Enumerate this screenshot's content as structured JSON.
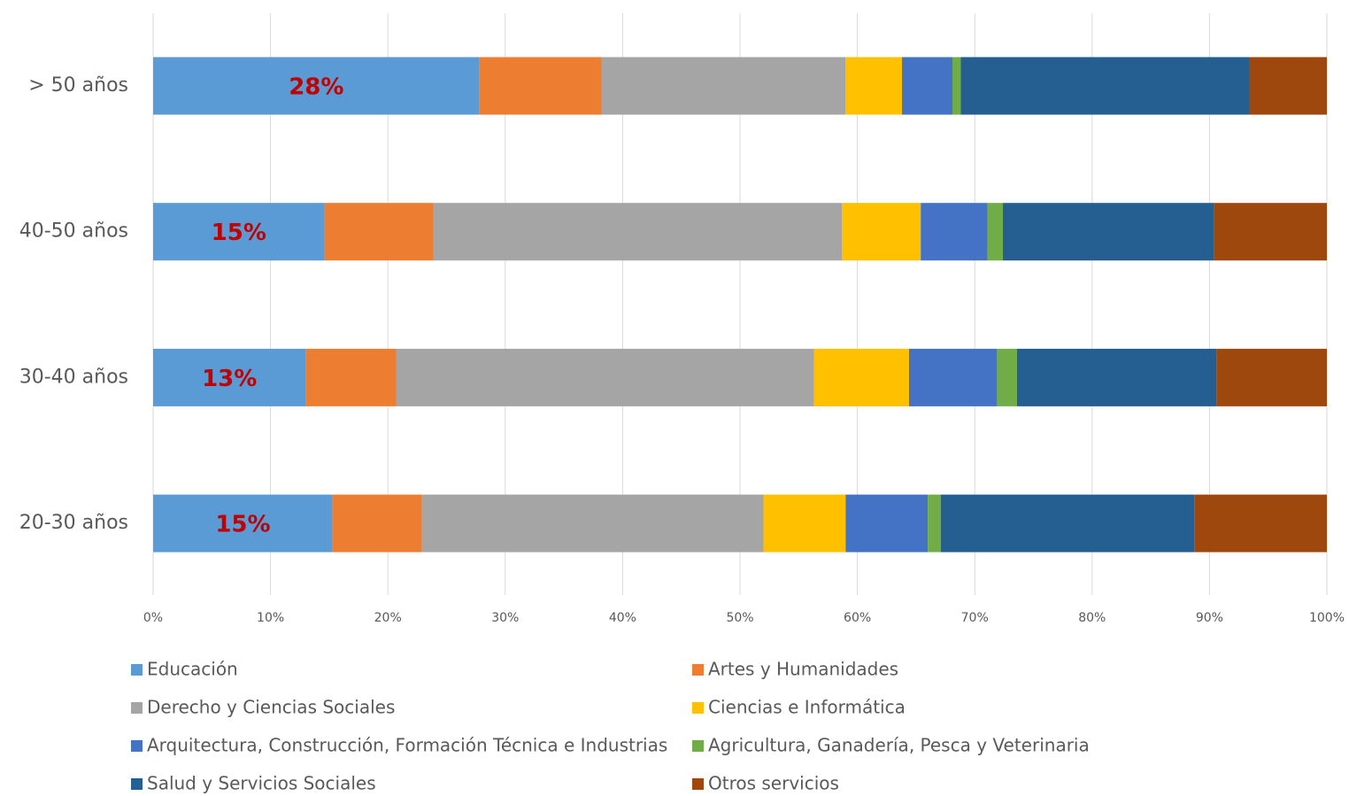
{
  "chart_data": {
    "type": "stacked-bar-horizontal",
    "categories": [
      "> 50 años",
      "40-50 años",
      "30-40 años",
      "20-30 años"
    ],
    "xlim": [
      0,
      100
    ],
    "xticks": [
      {
        "value": 0,
        "label": "0%"
      },
      {
        "value": 10,
        "label": "10%"
      },
      {
        "value": 20,
        "label": "20%"
      },
      {
        "value": 30,
        "label": "30%"
      },
      {
        "value": 40,
        "label": "40%"
      },
      {
        "value": 50,
        "label": "50%"
      },
      {
        "value": 60,
        "label": "60%"
      },
      {
        "value": 70,
        "label": "70%"
      },
      {
        "value": 80,
        "label": "80%"
      },
      {
        "value": 90,
        "label": "90%"
      },
      {
        "value": 100,
        "label": "100%"
      }
    ],
    "grid": true,
    "legend": "bottom",
    "series": [
      {
        "name": "Educación",
        "color": "#5b9bd5",
        "values": [
          27.8,
          14.6,
          13.0,
          15.3
        ],
        "value_labels": [
          "28%",
          "15%",
          "13%",
          "15%"
        ]
      },
      {
        "name": "Artes y Humanidades",
        "color": "#ed7d31",
        "values": [
          10.4,
          9.3,
          7.7,
          7.6
        ]
      },
      {
        "name": "Derecho y Ciencias Sociales",
        "color": "#a5a5a5",
        "values": [
          20.8,
          34.8,
          35.6,
          29.1
        ]
      },
      {
        "name": "Ciencias e Informática",
        "color": "#ffc000",
        "values": [
          4.8,
          6.7,
          8.1,
          7.0
        ]
      },
      {
        "name": "Arquitectura, Construcción, Formación Técnica e Industrias",
        "color": "#4472c4",
        "values": [
          4.3,
          5.7,
          7.5,
          7.0
        ]
      },
      {
        "name": "Agricultura, Ganadería, Pesca y Veterinaria",
        "color": "#70ad47",
        "values": [
          0.7,
          1.3,
          1.7,
          1.1
        ]
      },
      {
        "name": "Salud y Servicios Sociales",
        "color": "#255e91",
        "values": [
          24.6,
          18.0,
          17.0,
          21.6
        ]
      },
      {
        "name": "Otros servicios",
        "color": "#9e480e",
        "values": [
          6.6,
          9.6,
          9.4,
          11.3
        ]
      }
    ]
  }
}
